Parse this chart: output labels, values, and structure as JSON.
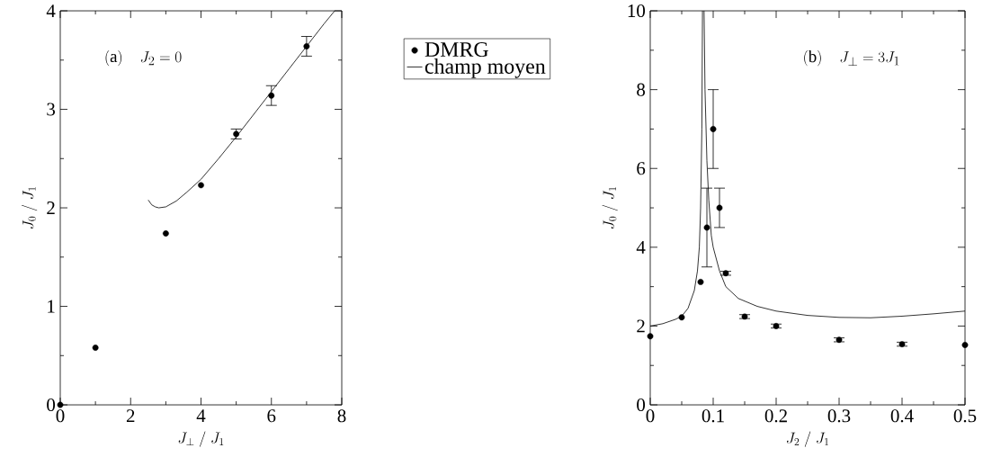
{
  "chart_data": [
    {
      "type": "scatter",
      "xlabel": "J_{\\perp}\\;/\\;J_{1}",
      "ylabel": "J_{0}\\;/\\;J_{1}",
      "xlim": [
        0,
        8
      ],
      "ylim": [
        0,
        4
      ],
      "xticks": [
        0,
        2,
        4,
        6,
        8
      ],
      "yticks": [
        0,
        1,
        2,
        3,
        4
      ],
      "annotations": [
        "\\mathrm{(a)}\\quad J_{2}=0"
      ],
      "legend": "right",
      "series": [
        {
          "type": "scatter",
          "name": "DMRG",
          "color": "#000000",
          "marker": "circle",
          "x": [
            0,
            1,
            3,
            4,
            5,
            6,
            7
          ],
          "values": [
            0,
            0.58,
            1.74,
            2.23,
            2.75,
            3.14,
            3.64
          ],
          "errors": [
            null,
            null,
            null,
            null,
            0.05,
            0.1,
            0.1
          ]
        },
        {
          "type": "line",
          "name": "champ moyen",
          "color": "#000000",
          "line_style": "solid",
          "marker": "none",
          "x": [
            2.5,
            2.6,
            2.7,
            2.8,
            3.0,
            3.3,
            3.6,
            4.0,
            4.5,
            5.0,
            5.5,
            6.0,
            6.5,
            7.0,
            7.5,
            7.8
          ],
          "values": [
            2.08,
            2.03,
            2.01,
            2.0,
            2.01,
            2.07,
            2.16,
            2.29,
            2.5,
            2.72,
            2.95,
            3.18,
            3.41,
            3.64,
            3.87,
            4.0
          ]
        }
      ]
    },
    {
      "type": "scatter",
      "xlabel": "J_{2}\\;/\\;J_{1}",
      "ylabel": "J_{0}\\;/\\;J_{1}",
      "xlim": [
        0,
        0.5
      ],
      "ylim": [
        0,
        10
      ],
      "xticks": [
        0,
        0.1,
        0.2,
        0.3,
        0.4,
        0.5
      ],
      "yticks": [
        0,
        2,
        4,
        6,
        8,
        10
      ],
      "annotations": [
        "\\mathrm{(b)}\\quad J_{\\perp}=3J_{1}"
      ],
      "series": [
        {
          "type": "scatter",
          "color": "#000000",
          "marker": "circle",
          "x": [
            0,
            0.05,
            0.08,
            0.09,
            0.1,
            0.11,
            0.12,
            0.15,
            0.2,
            0.3,
            0.4,
            0.5
          ],
          "values": [
            1.74,
            2.22,
            3.12,
            4.5,
            7.0,
            5.0,
            3.34,
            2.24,
            2.0,
            1.65,
            1.54,
            1.52
          ],
          "errors": [
            null,
            null,
            null,
            [
              3.5,
              5.5
            ],
            [
              6,
              8
            ],
            [
              4.5,
              5.5
            ],
            0.05,
            0.05,
            0.05,
            0.05,
            0.05,
            null
          ]
        },
        {
          "type": "line",
          "color": "#000000",
          "line_style": "solid",
          "marker": "none",
          "x": [
            0,
            0.02,
            0.04,
            0.05,
            0.06,
            0.07,
            0.075,
            0.078,
            0.08,
            0.082,
            0.083,
            0.084,
            0.0855,
            0.087,
            0.09,
            0.093,
            0.097,
            0.1,
            0.11,
            0.12,
            0.14,
            0.17,
            0.2,
            0.25,
            0.3,
            0.35,
            0.4,
            0.45,
            0.5
          ],
          "values": [
            2.0,
            2.06,
            2.17,
            2.25,
            2.45,
            2.9,
            3.4,
            4.0,
            5.0,
            7.0,
            10,
            null,
            10,
            8,
            6.2,
            5.2,
            4.3,
            4.0,
            3.4,
            3.0,
            2.7,
            2.5,
            2.38,
            2.27,
            2.22,
            2.21,
            2.25,
            2.31,
            2.38
          ]
        }
      ]
    }
  ]
}
